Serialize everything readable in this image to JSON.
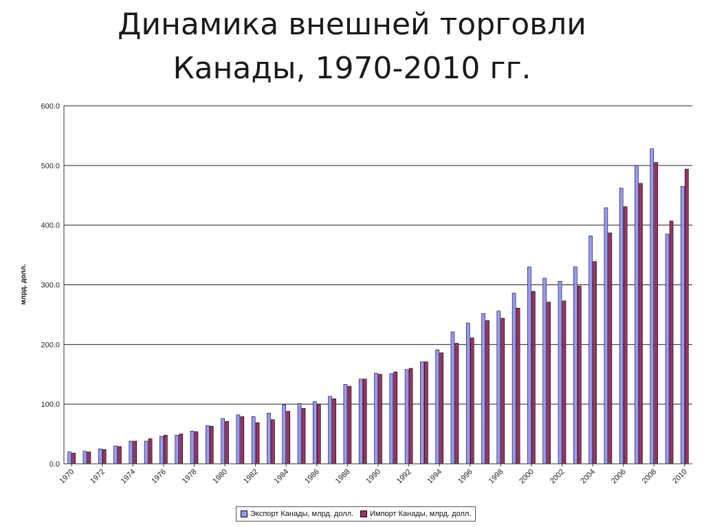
{
  "title": {
    "line1": "Динамика внешней торговли",
    "line2": "Канады, 1970-2010 гг."
  },
  "chart_data": {
    "type": "bar",
    "title": "Динамика внешней торговли Канады, 1970-2010 гг.",
    "ylabel": "млрд. долл.",
    "xlabel": "",
    "ylim": [
      0,
      600
    ],
    "y_ticks": [
      "0.0",
      "100.0",
      "200.0",
      "300.0",
      "400.0",
      "500.0",
      "600.0"
    ],
    "grid": true,
    "legend_position": "bottom",
    "categories": [
      "1970",
      "1971",
      "1972",
      "1973",
      "1974",
      "1975",
      "1976",
      "1977",
      "1978",
      "1979",
      "1980",
      "1981",
      "1982",
      "1983",
      "1984",
      "1985",
      "1986",
      "1987",
      "1988",
      "1989",
      "1990",
      "1991",
      "1992",
      "1993",
      "1994",
      "1995",
      "1996",
      "1997",
      "1998",
      "1999",
      "2000",
      "2001",
      "2002",
      "2003",
      "2004",
      "2005",
      "2006",
      "2007",
      "2008",
      "2009",
      "2010"
    ],
    "x_tick_labels": [
      "1970",
      "1972",
      "1974",
      "1976",
      "1978",
      "1980",
      "1982",
      "1984",
      "1986",
      "1988",
      "1990",
      "1992",
      "1994",
      "1996",
      "1998",
      "2000",
      "2002",
      "2004",
      "2006",
      "2008",
      "2010"
    ],
    "series": [
      {
        "name": "Экспорт Канады, млрд. долл.",
        "color": "#9999ff",
        "values": [
          20,
          21,
          25,
          30,
          38,
          38,
          46,
          48,
          55,
          64,
          76,
          82,
          79,
          85,
          99,
          101,
          104,
          113,
          133,
          142,
          152,
          151,
          158,
          171,
          191,
          221,
          236,
          252,
          256,
          286,
          330,
          311,
          306,
          330,
          382,
          429,
          462,
          500,
          528,
          385,
          465
        ]
      },
      {
        "name": "Импорт Канады, млрд. долл.",
        "color": "#993366",
        "values": [
          18,
          20,
          24,
          29,
          38,
          42,
          48,
          50,
          54,
          63,
          71,
          79,
          69,
          74,
          88,
          93,
          99,
          109,
          130,
          142,
          150,
          154,
          160,
          171,
          186,
          202,
          211,
          240,
          244,
          261,
          289,
          271,
          273,
          298,
          339,
          387,
          431,
          470,
          505,
          407,
          494
        ]
      }
    ]
  }
}
